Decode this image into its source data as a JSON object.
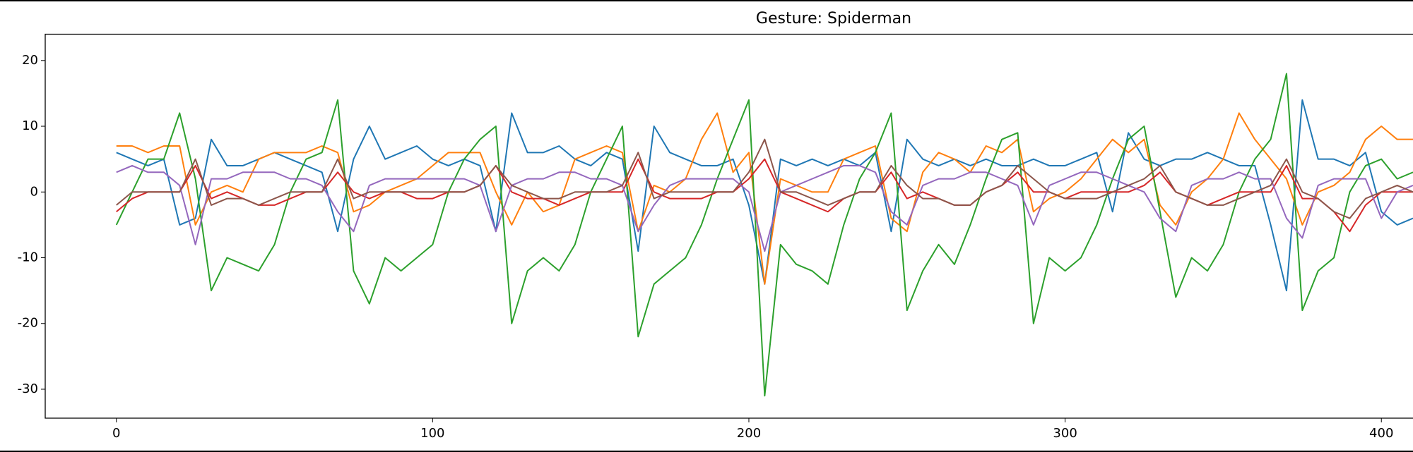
{
  "chart_data": {
    "type": "line",
    "title": "Gesture: Spiderman",
    "x": [
      0,
      5,
      10,
      15,
      20,
      25,
      30,
      35,
      40,
      45,
      50,
      55,
      60,
      65,
      70,
      75,
      80,
      85,
      90,
      95,
      100,
      105,
      110,
      115,
      120,
      125,
      130,
      135,
      140,
      145,
      150,
      155,
      160,
      165,
      170,
      175,
      180,
      185,
      190,
      195,
      200,
      205,
      210,
      215,
      220,
      225,
      230,
      235,
      240,
      245,
      250,
      255,
      260,
      265,
      270,
      275,
      280,
      285,
      290,
      295,
      300,
      305,
      310,
      315,
      320,
      325,
      330,
      335,
      340,
      345,
      350,
      355,
      360,
      365,
      370,
      375,
      380,
      385,
      390,
      395,
      400,
      405,
      410
    ],
    "series": [
      {
        "color": "#1f77b4",
        "values": [
          6,
          5,
          4,
          5,
          -5,
          -4,
          8,
          4,
          4,
          5,
          6,
          5,
          4,
          3,
          -6,
          5,
          10,
          5,
          6,
          7,
          5,
          4,
          5,
          4,
          -6,
          12,
          6,
          6,
          7,
          5,
          4,
          6,
          5,
          -9,
          10,
          6,
          5,
          4,
          4,
          5,
          -2,
          -14,
          5,
          4,
          5,
          4,
          5,
          4,
          6,
          -6,
          8,
          5,
          4,
          5,
          4,
          5,
          4,
          4,
          5,
          4,
          4,
          5,
          6,
          -3,
          9,
          5,
          4,
          5,
          5,
          6,
          5,
          4,
          4,
          -5,
          -15,
          14,
          5,
          5,
          4,
          6,
          -3,
          -5,
          -4
        ]
      },
      {
        "color": "#ff7f0e",
        "values": [
          7,
          7,
          6,
          7,
          7,
          -5,
          0,
          1,
          0,
          5,
          6,
          6,
          6,
          7,
          6,
          -3,
          -2,
          0,
          1,
          2,
          4,
          6,
          6,
          6,
          0,
          -5,
          0,
          -3,
          -2,
          5,
          6,
          7,
          6,
          -6,
          1,
          0,
          2,
          8,
          12,
          3,
          6,
          -14,
          2,
          1,
          0,
          0,
          5,
          6,
          7,
          -4,
          -6,
          3,
          6,
          5,
          3,
          7,
          6,
          8,
          -3,
          -1,
          0,
          2,
          5,
          8,
          6,
          8,
          -2,
          -5,
          0,
          2,
          5,
          12,
          8,
          5,
          2,
          -5,
          0,
          1,
          3,
          8,
          10,
          8,
          8
        ]
      },
      {
        "color": "#2ca02c",
        "values": [
          -5,
          0,
          5,
          5,
          12,
          2,
          -15,
          -10,
          -11,
          -12,
          -8,
          0,
          5,
          6,
          14,
          -12,
          -17,
          -10,
          -12,
          -10,
          -8,
          0,
          5,
          8,
          10,
          -20,
          -12,
          -10,
          -12,
          -8,
          0,
          5,
          10,
          -22,
          -14,
          -12,
          -10,
          -5,
          2,
          8,
          14,
          -31,
          -8,
          -11,
          -12,
          -14,
          -5,
          2,
          6,
          12,
          -18,
          -12,
          -8,
          -11,
          -5,
          2,
          8,
          9,
          -20,
          -10,
          -12,
          -10,
          -5,
          2,
          8,
          10,
          -3,
          -16,
          -10,
          -12,
          -8,
          0,
          5,
          8,
          18,
          -18,
          -12,
          -10,
          0,
          4,
          5,
          2,
          3
        ]
      },
      {
        "color": "#d62728",
        "values": [
          -3,
          -1,
          0,
          0,
          0,
          4,
          -1,
          0,
          -1,
          -2,
          -2,
          -1,
          0,
          0,
          3,
          0,
          -1,
          0,
          0,
          -1,
          -1,
          0,
          0,
          1,
          4,
          0,
          -1,
          -1,
          -2,
          -1,
          0,
          0,
          0,
          5,
          0,
          -1,
          -1,
          -1,
          0,
          0,
          2,
          5,
          0,
          -1,
          -2,
          -3,
          -1,
          0,
          0,
          3,
          -1,
          0,
          -1,
          -2,
          -2,
          0,
          1,
          3,
          0,
          0,
          -1,
          0,
          0,
          0,
          0,
          1,
          3,
          0,
          -1,
          -2,
          -1,
          0,
          0,
          0,
          4,
          -1,
          -1,
          -3,
          -6,
          -2,
          0,
          0,
          0
        ]
      },
      {
        "color": "#9467bd",
        "values": [
          3,
          4,
          3,
          3,
          1,
          -8,
          2,
          2,
          3,
          3,
          3,
          2,
          2,
          1,
          -3,
          -6,
          1,
          2,
          2,
          2,
          2,
          2,
          2,
          1,
          -6,
          1,
          2,
          2,
          3,
          3,
          2,
          2,
          1,
          -6,
          -2,
          1,
          2,
          2,
          2,
          2,
          0,
          -9,
          0,
          1,
          2,
          3,
          4,
          4,
          3,
          -3,
          -5,
          1,
          2,
          2,
          3,
          3,
          2,
          1,
          -5,
          1,
          2,
          3,
          3,
          2,
          1,
          0,
          -4,
          -6,
          1,
          2,
          2,
          3,
          2,
          2,
          -4,
          -7,
          1,
          2,
          2,
          2,
          -4,
          0,
          1
        ]
      },
      {
        "color": "#8c564b",
        "values": [
          -2,
          0,
          0,
          0,
          0,
          5,
          -2,
          -1,
          -1,
          -2,
          -1,
          0,
          0,
          0,
          5,
          -1,
          0,
          0,
          0,
          0,
          0,
          0,
          0,
          1,
          4,
          1,
          0,
          -1,
          -1,
          0,
          0,
          0,
          1,
          6,
          -1,
          0,
          0,
          0,
          0,
          0,
          3,
          8,
          0,
          0,
          -1,
          -2,
          -1,
          0,
          0,
          4,
          1,
          -1,
          -1,
          -2,
          -2,
          0,
          1,
          4,
          2,
          0,
          -1,
          -1,
          -1,
          0,
          1,
          2,
          4,
          0,
          -1,
          -2,
          -2,
          -1,
          0,
          1,
          5,
          0,
          -1,
          -3,
          -4,
          -1,
          0,
          1,
          0
        ]
      }
    ],
    "xlim": [
      -22.5,
      410
    ],
    "ylim": [
      -34.4,
      24
    ],
    "xticks": [
      0,
      100,
      200,
      300,
      400
    ],
    "yticks": [
      -30,
      -20,
      -10,
      0,
      10,
      20
    ]
  }
}
